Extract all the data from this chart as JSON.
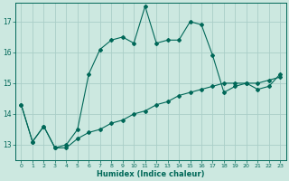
{
  "xlabel": "Humidex (Indice chaleur)",
  "background_color": "#cce8e0",
  "grid_color": "#aacec8",
  "line_color": "#006858",
  "x_values": [
    0,
    1,
    2,
    3,
    4,
    5,
    6,
    7,
    8,
    9,
    10,
    11,
    12,
    13,
    14,
    15,
    16,
    17,
    18,
    19,
    20,
    21,
    22,
    23
  ],
  "line1_y": [
    14.3,
    13.1,
    13.6,
    12.9,
    12.9,
    13.2,
    13.4,
    13.5,
    13.7,
    13.8,
    14.0,
    14.1,
    14.3,
    14.4,
    14.6,
    14.7,
    14.8,
    14.9,
    15.0,
    15.0,
    15.0,
    15.0,
    15.1,
    15.2
  ],
  "line2_y": [
    14.3,
    13.1,
    13.6,
    12.9,
    13.0,
    13.5,
    15.3,
    16.1,
    16.4,
    16.5,
    16.3,
    17.5,
    16.3,
    16.4,
    16.4,
    17.0,
    16.9,
    15.9,
    14.7,
    14.9,
    15.0,
    14.8,
    14.9,
    15.3
  ],
  "ylim": [
    12.5,
    17.6
  ],
  "yticks": [
    13,
    14,
    15,
    16,
    17
  ],
  "xlim": [
    -0.5,
    23.5
  ]
}
